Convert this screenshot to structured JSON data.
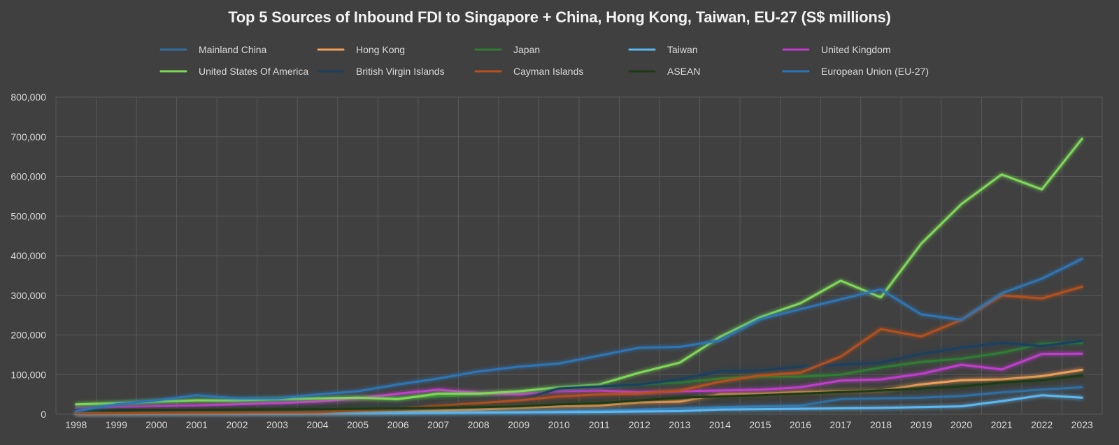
{
  "chart_data": {
    "type": "line",
    "title": "Top 5 Sources of Inbound FDI to Singapore + China, Hong Kong, Taiwan, EU-27 (S$ millions)",
    "xlabel": "",
    "ylabel": "",
    "ylim": [
      0,
      800000
    ],
    "yticks": [
      0,
      100000,
      200000,
      300000,
      400000,
      500000,
      600000,
      700000,
      800000
    ],
    "ytick_labels": [
      "0",
      "100,000",
      "200,000",
      "300,000",
      "400,000",
      "500,000",
      "600,000",
      "700,000",
      "800,000"
    ],
    "grid": true,
    "legend_position": "top",
    "x": [
      "1998",
      "1999",
      "2000",
      "2001",
      "2002",
      "2003",
      "2004",
      "2005",
      "2006",
      "2007",
      "2008",
      "2009",
      "2010",
      "2011",
      "2012",
      "2013",
      "2014",
      "2015",
      "2016",
      "2017",
      "2018",
      "2019",
      "2020",
      "2021",
      "2022",
      "2023"
    ],
    "series": [
      {
        "name": "Mainland China",
        "color": "#2f6fa3",
        "values": [
          500,
          600,
          700,
          800,
          900,
          1000,
          1200,
          1500,
          2000,
          3000,
          4000,
          5000,
          7000,
          9000,
          12000,
          15000,
          18000,
          20000,
          22000,
          38000,
          40000,
          42000,
          46000,
          55000,
          62000,
          68000
        ]
      },
      {
        "name": "Hong Kong",
        "color": "#f4a05a",
        "values": [
          3000,
          3000,
          3500,
          4000,
          3500,
          4000,
          4000,
          5000,
          6000,
          9000,
          12000,
          16000,
          20000,
          22000,
          30000,
          32000,
          50000,
          52000,
          56000,
          58000,
          60000,
          75000,
          86000,
          88000,
          96000,
          112000
        ]
      },
      {
        "name": "Japan",
        "color": "#2e7d32",
        "values": [
          20000,
          26000,
          30000,
          36000,
          33000,
          35000,
          38000,
          40000,
          42000,
          45000,
          50000,
          55000,
          62000,
          68000,
          75000,
          80000,
          90000,
          95000,
          95000,
          100000,
          118000,
          132000,
          140000,
          155000,
          178000,
          180000
        ]
      },
      {
        "name": "Taiwan",
        "color": "#5cb8f2",
        "values": [
          1000,
          1000,
          1500,
          2000,
          2000,
          2000,
          2500,
          3000,
          3500,
          4000,
          4500,
          5000,
          5500,
          6000,
          7000,
          8000,
          12000,
          13000,
          14000,
          15000,
          16000,
          18000,
          20000,
          33000,
          48000,
          42000
        ]
      },
      {
        "name": "United Kingdom",
        "color": "#c13ccd",
        "values": [
          15000,
          18000,
          20000,
          22000,
          25000,
          28000,
          32000,
          40000,
          52000,
          62000,
          54000,
          50000,
          58000,
          60000,
          55000,
          58000,
          60000,
          62000,
          68000,
          85000,
          88000,
          102000,
          125000,
          113000,
          152000,
          153000
        ]
      },
      {
        "name": "United States Of America",
        "color": "#7ed957",
        "values": [
          25000,
          28000,
          32000,
          35000,
          35000,
          38000,
          40000,
          42000,
          38000,
          52000,
          52000,
          58000,
          68000,
          75000,
          105000,
          130000,
          195000,
          245000,
          280000,
          337000,
          295000,
          430000,
          530000,
          605000,
          567000,
          695000
        ]
      },
      {
        "name": "British Virgin Islands",
        "color": "#1c3f5e",
        "values": [
          8000,
          8000,
          9000,
          10000,
          10000,
          11000,
          12000,
          15000,
          20000,
          25000,
          30000,
          35000,
          65000,
          70000,
          75000,
          88000,
          108000,
          110000,
          120000,
          125000,
          130000,
          152000,
          168000,
          180000,
          172000,
          185000
        ]
      },
      {
        "name": "Cayman Islands",
        "color": "#b5501f",
        "values": [
          2000,
          2500,
          3000,
          3500,
          4000,
          4500,
          5000,
          10000,
          15000,
          22000,
          28000,
          35000,
          45000,
          50000,
          52000,
          60000,
          82000,
          98000,
          105000,
          145000,
          215000,
          196000,
          238000,
          300000,
          292000,
          322000
        ]
      },
      {
        "name": "ASEAN",
        "color": "#1d3a14",
        "values": [
          10000,
          10500,
          11000,
          11500,
          12000,
          12500,
          13000,
          14000,
          15000,
          16000,
          18000,
          20000,
          25000,
          28000,
          35000,
          42000,
          45000,
          48000,
          52000,
          56000,
          60000,
          65000,
          70000,
          80000,
          86000,
          98000
        ]
      },
      {
        "name": "European Union (EU-27)",
        "color": "#2e75b6",
        "values": [
          8000,
          25000,
          35000,
          48000,
          40000,
          40000,
          50000,
          58000,
          75000,
          90000,
          108000,
          120000,
          128000,
          148000,
          168000,
          170000,
          186000,
          240000,
          265000,
          290000,
          315000,
          252000,
          238000,
          305000,
          342000,
          392000
        ]
      }
    ]
  }
}
